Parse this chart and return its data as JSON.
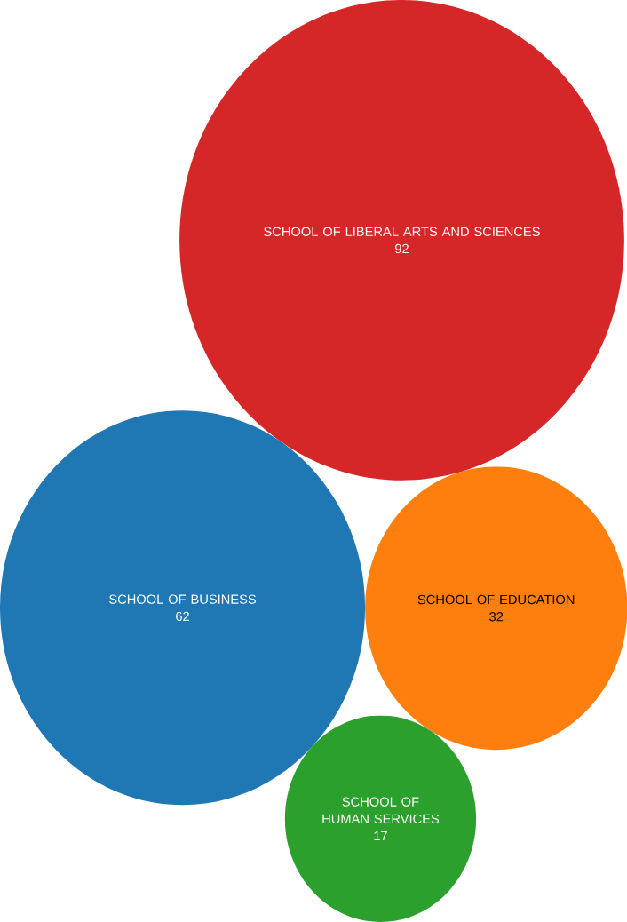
{
  "chart_data": {
    "type": "other",
    "categories": [
      "SCHOOL OF LIBERAL ARTS AND SCIENCES",
      "SCHOOL OF BUSINESS",
      "SCHOOL OF EDUCATION",
      "SCHOOL OF HUMAN SERVICES"
    ],
    "values": [
      92,
      62,
      32,
      17
    ],
    "value_labels": [
      "92",
      "62",
      "32",
      "17"
    ],
    "colors": [
      "#d62728",
      "#1f77b4",
      "#ff7f0e",
      "#2ca02c"
    ]
  }
}
